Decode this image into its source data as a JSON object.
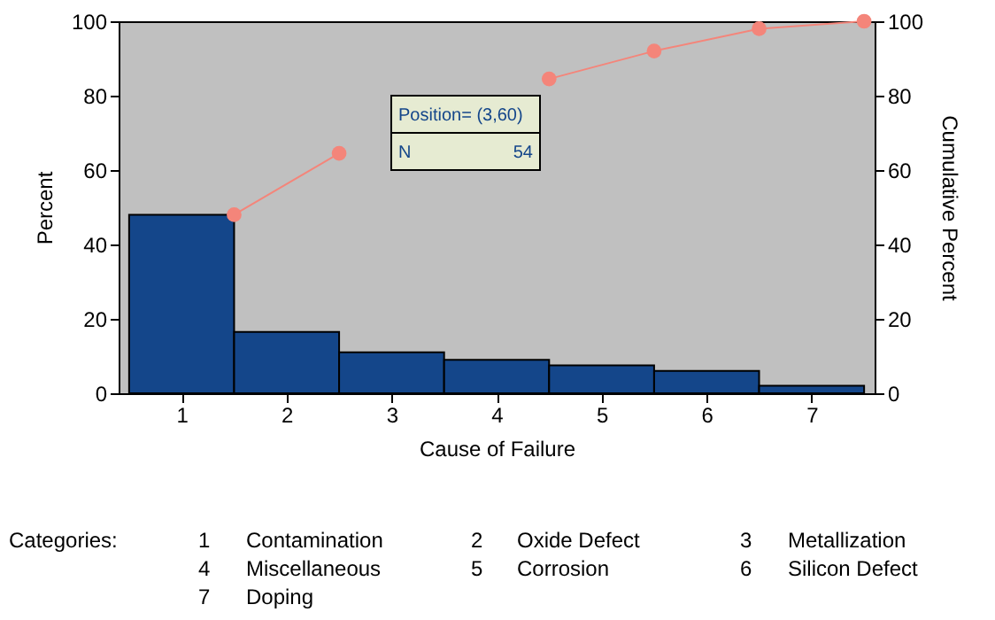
{
  "chart_data": {
    "type": "bar",
    "xlabel": "Cause of Failure",
    "ylabel": "Percent",
    "y2label": "Cumulative Percent",
    "x": [
      1,
      2,
      3,
      4,
      5,
      6,
      7
    ],
    "xlim": [
      0.4,
      7.6
    ],
    "xticks": [
      1,
      2,
      3,
      4,
      5,
      6,
      7
    ],
    "ylim": [
      0,
      100
    ],
    "yticks": [
      0,
      20,
      40,
      60,
      80,
      100
    ],
    "y2lim": [
      0,
      100
    ],
    "y2ticks": [
      0,
      20,
      40,
      60,
      80,
      100
    ],
    "grid": false,
    "marker": "circle",
    "line_style": "solid",
    "series": [
      {
        "color": "#14468a",
        "values": [
          48,
          16.5,
          11,
          9,
          7.5,
          6,
          2
        ]
      },
      {
        "type": "line",
        "axis": "y2",
        "color": "#f4857a",
        "x": [
          1.5,
          2.5,
          3.5,
          4.5,
          5.5,
          6.5,
          7.5
        ],
        "values": [
          48,
          64.5,
          null,
          84.5,
          92,
          98,
          100
        ]
      }
    ],
    "annotations": [
      "Position= (3,60)",
      "N",
      "54",
      "Categories:",
      "1",
      "Contamination",
      "2",
      "Oxide Defect",
      "3",
      "Metallization",
      "4",
      "Miscellaneous",
      "5",
      "Corrosion",
      "6",
      "Silicon Defect",
      "7",
      "Doping"
    ]
  }
}
